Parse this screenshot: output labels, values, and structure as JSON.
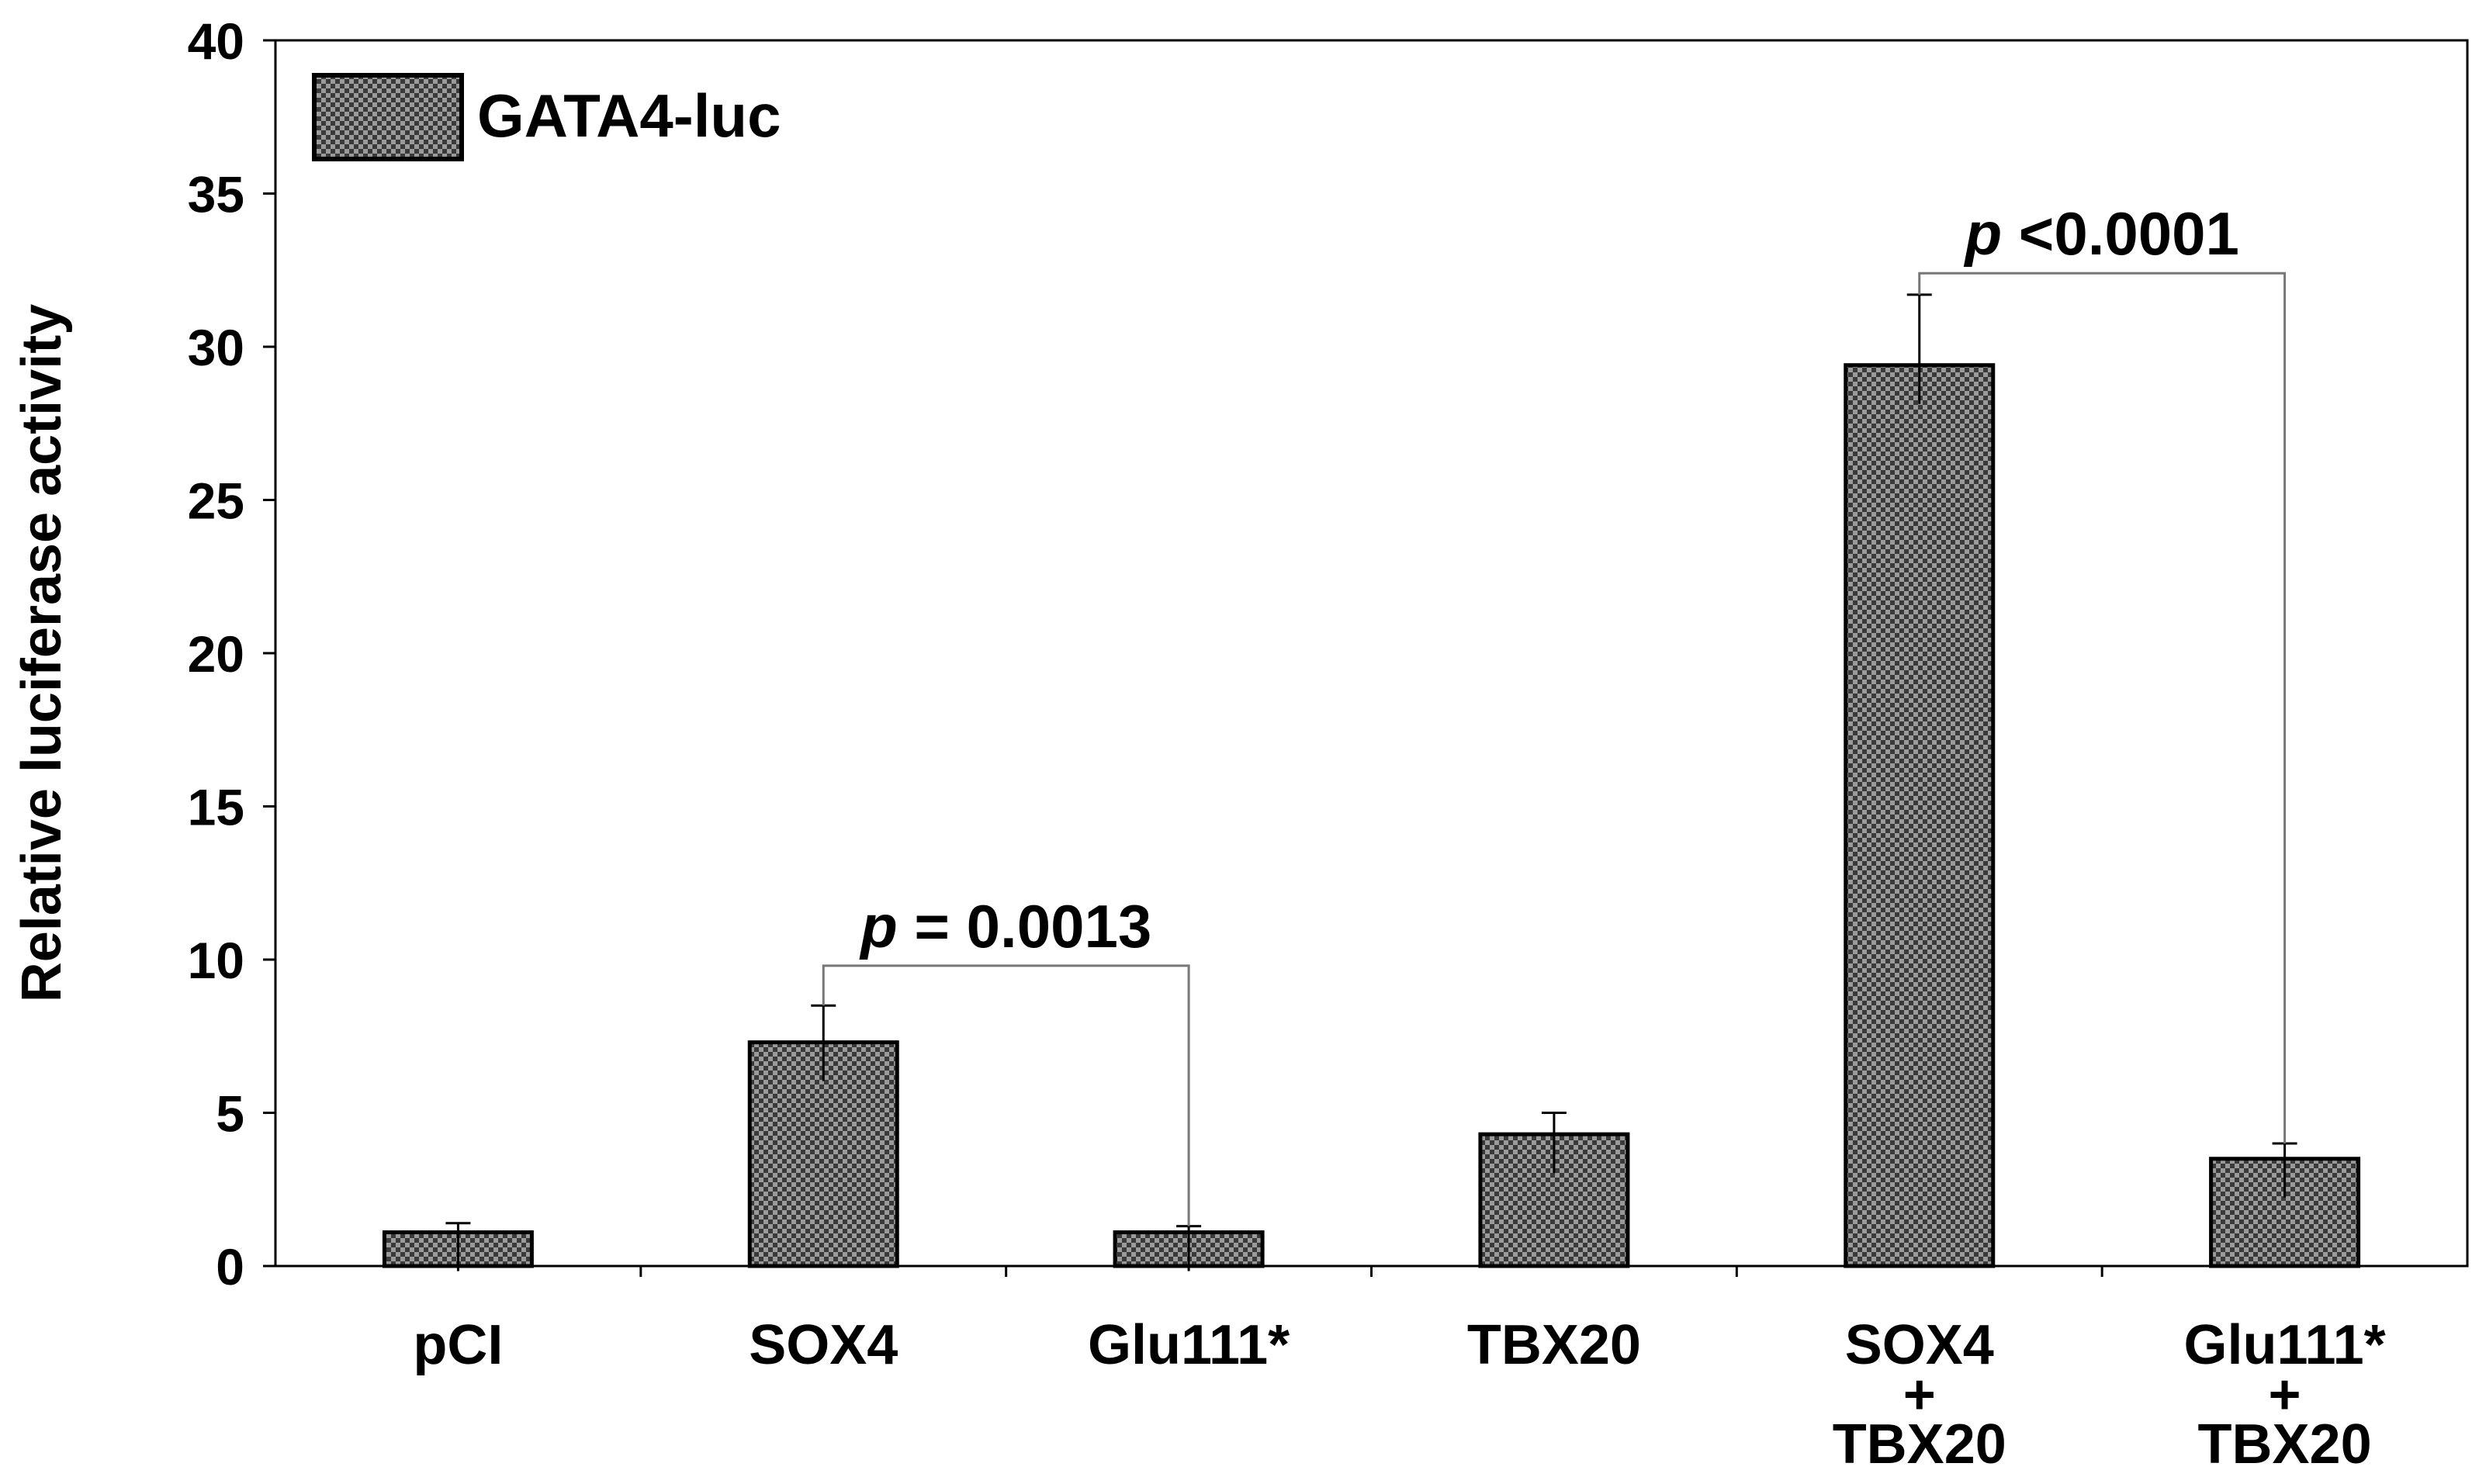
{
  "chart_data": {
    "type": "bar",
    "title": "",
    "xlabel": "",
    "ylabel": "Relative luciferase activity",
    "ylim": [
      0,
      40
    ],
    "yticks": [
      0,
      5,
      10,
      15,
      20,
      25,
      30,
      35,
      40
    ],
    "categories": [
      [
        "pCI"
      ],
      [
        "SOX4"
      ],
      [
        "Glu111*"
      ],
      [
        "TBX20"
      ],
      [
        "SOX4",
        "+",
        "TBX20"
      ],
      [
        "Glu111*",
        "+",
        "TBX20"
      ]
    ],
    "series": [
      {
        "name": "GATA4-luc",
        "values": [
          1.1,
          7.3,
          1.1,
          4.3,
          29.4,
          3.5
        ],
        "errors": [
          0.3,
          1.2,
          0.2,
          0.7,
          2.3,
          0.5
        ]
      }
    ],
    "legend": {
      "position": "top-left",
      "entries": [
        "GATA4-luc"
      ]
    },
    "annotations": [
      {
        "from": 1,
        "to": 2,
        "prefix": "p",
        "text": " = 0.0013",
        "level": 9.8
      },
      {
        "from": 4,
        "to": 5,
        "prefix": "p",
        "text": " <0.0001",
        "level": 32.4
      }
    ],
    "grid": false,
    "colors": {
      "bar": "#3a3a3a",
      "bar_pattern": "#9a9a9a",
      "axis": "#000000",
      "bracket": "#777777"
    }
  }
}
